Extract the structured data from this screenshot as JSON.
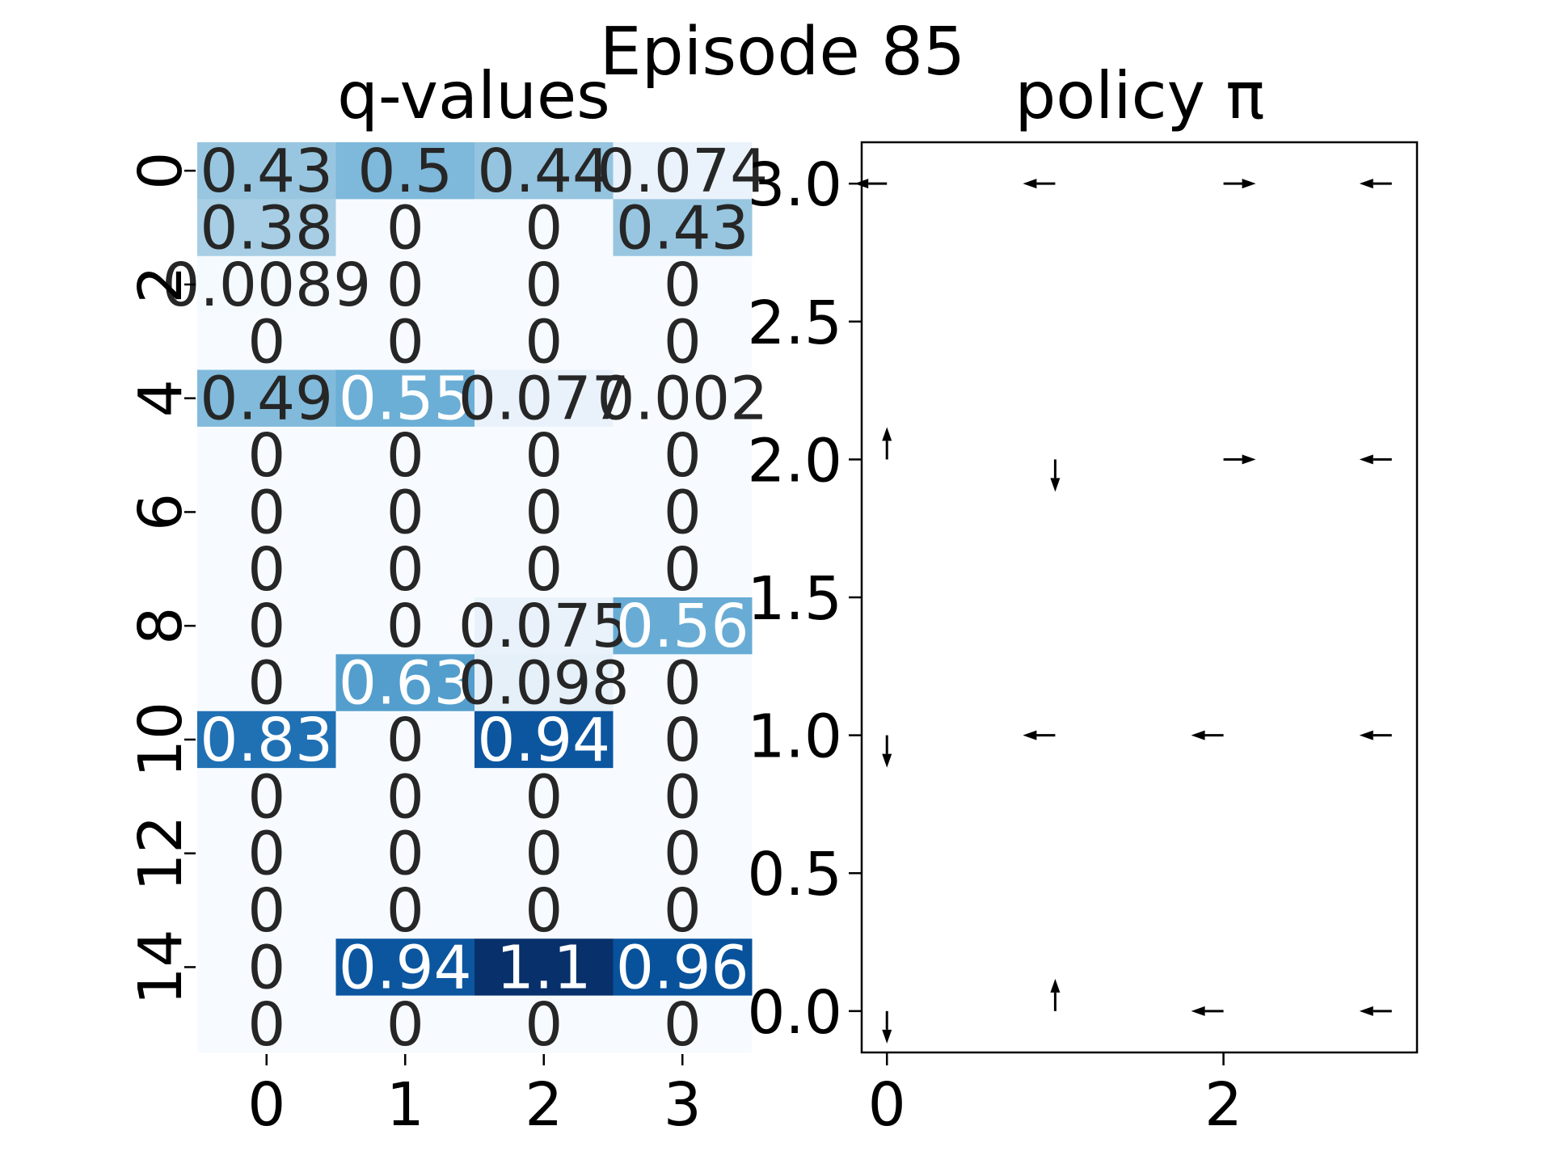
{
  "figure": {
    "suptitle": "Episode 85"
  },
  "chart_data": [
    {
      "type": "heatmap",
      "title": "q-values",
      "xlabel": "",
      "ylabel": "",
      "x_ticks": [
        "0",
        "1",
        "2",
        "3"
      ],
      "y_ticks": [
        "0",
        "2",
        "4",
        "6",
        "8",
        "10",
        "12",
        "14"
      ],
      "rows": 16,
      "cols": 4,
      "colormap": "Blues",
      "color_range": [
        0,
        1.1
      ],
      "values": [
        [
          0.43,
          0.5,
          0.44,
          0.074
        ],
        [
          0.38,
          0,
          0,
          0.43
        ],
        [
          0.0089,
          0,
          0,
          0
        ],
        [
          0,
          0,
          0,
          0
        ],
        [
          0.49,
          0.55,
          0.077,
          0.002
        ],
        [
          0,
          0,
          0,
          0
        ],
        [
          0,
          0,
          0,
          0
        ],
        [
          0,
          0,
          0,
          0
        ],
        [
          0,
          0,
          0.075,
          0.56
        ],
        [
          0,
          0.63,
          0.098,
          0
        ],
        [
          0.83,
          0,
          0.94,
          0
        ],
        [
          0,
          0,
          0,
          0
        ],
        [
          0,
          0,
          0,
          0
        ],
        [
          0,
          0,
          0,
          0
        ],
        [
          0,
          0.94,
          1.1,
          0.96
        ],
        [
          0,
          0,
          0,
          0
        ]
      ],
      "labels": [
        [
          "0.43",
          "0.5",
          "0.44",
          "0.074"
        ],
        [
          "0.38",
          "0",
          "0",
          "0.43"
        ],
        [
          "0.0089",
          "0",
          "0",
          "0"
        ],
        [
          "0",
          "0",
          "0",
          "0"
        ],
        [
          "0.49",
          "0.55",
          "0.077",
          "0.002"
        ],
        [
          "0",
          "0",
          "0",
          "0"
        ],
        [
          "0",
          "0",
          "0",
          "0"
        ],
        [
          "0",
          "0",
          "0",
          "0"
        ],
        [
          "0",
          "0",
          "0.075",
          "0.56"
        ],
        [
          "0",
          "0.63",
          "0.098",
          "0"
        ],
        [
          "0.83",
          "0",
          "0.94",
          "0"
        ],
        [
          "0",
          "0",
          "0",
          "0"
        ],
        [
          "0",
          "0",
          "0",
          "0"
        ],
        [
          "0",
          "0",
          "0",
          "0"
        ],
        [
          "0",
          "0.94",
          "1.1",
          "0.96"
        ],
        [
          "0",
          "0",
          "0",
          "0"
        ]
      ]
    },
    {
      "type": "quiver",
      "title": "policy π",
      "xlabel": "",
      "ylabel": "",
      "xlim": [
        -0.15,
        3.15
      ],
      "ylim": [
        -0.15,
        3.15
      ],
      "x_ticks": [
        "0",
        "2"
      ],
      "x_tick_values": [
        0,
        2
      ],
      "y_ticks": [
        "0.0",
        "0.5",
        "1.0",
        "1.5",
        "2.0",
        "2.5",
        "3.0"
      ],
      "y_tick_values": [
        0,
        0.5,
        1,
        1.5,
        2,
        2.5,
        3
      ],
      "arrows": [
        {
          "x": 0,
          "y": 3,
          "dir": "left"
        },
        {
          "x": 1,
          "y": 3,
          "dir": "left"
        },
        {
          "x": 2,
          "y": 3,
          "dir": "right"
        },
        {
          "x": 3,
          "y": 3,
          "dir": "left"
        },
        {
          "x": 0,
          "y": 2,
          "dir": "up"
        },
        {
          "x": 1,
          "y": 2,
          "dir": "down"
        },
        {
          "x": 2,
          "y": 2,
          "dir": "right"
        },
        {
          "x": 3,
          "y": 2,
          "dir": "left"
        },
        {
          "x": 0,
          "y": 1,
          "dir": "down"
        },
        {
          "x": 1,
          "y": 1,
          "dir": "left"
        },
        {
          "x": 2,
          "y": 1,
          "dir": "left"
        },
        {
          "x": 3,
          "y": 1,
          "dir": "left"
        },
        {
          "x": 0,
          "y": 0,
          "dir": "down"
        },
        {
          "x": 1,
          "y": 0,
          "dir": "up"
        },
        {
          "x": 2,
          "y": 0,
          "dir": "left"
        },
        {
          "x": 3,
          "y": 0,
          "dir": "left"
        }
      ]
    }
  ]
}
